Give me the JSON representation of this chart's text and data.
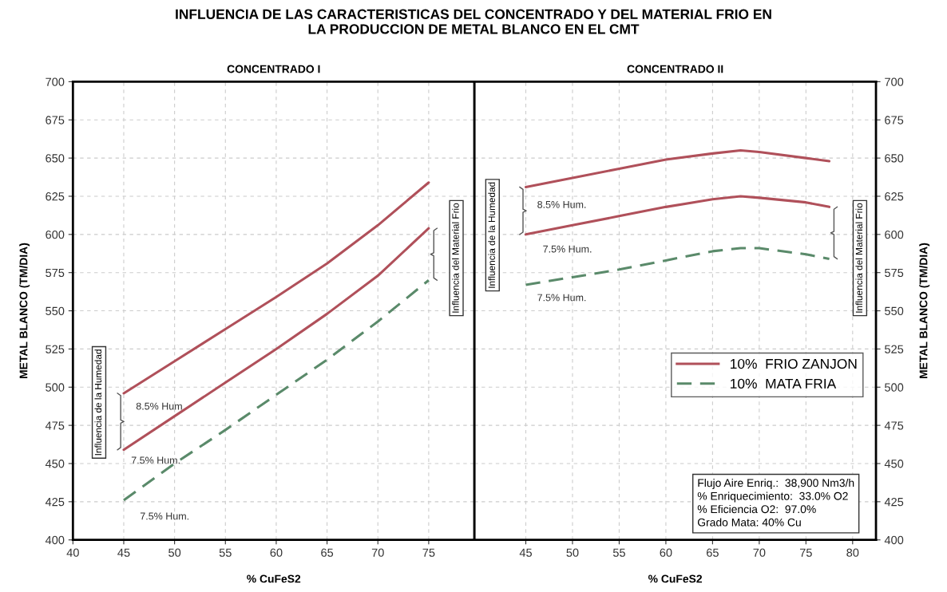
{
  "chart_data": [
    {
      "type": "line",
      "title": "INFLUENCIA DE LAS CARACTERISTICAS DEL CONCENTRADO Y DEL MATERIAL FRIO EN\nLA PRODUCCION DE METAL BLANCO EN EL CMT",
      "subtitle": "CONCENTRADO I",
      "xlabel": "% CuFeS2",
      "ylabel": "METAL BLANCO (TM/DIA)",
      "xlim": [
        40,
        79.5
      ],
      "xticks": [
        40,
        45,
        50,
        55,
        60,
        65,
        70,
        75
      ],
      "ylim": [
        400,
        700
      ],
      "yticks": [
        400,
        425,
        450,
        475,
        500,
        525,
        550,
        575,
        600,
        625,
        650,
        675,
        700
      ],
      "grid": true,
      "marker": "none",
      "series": [
        {
          "x": [
            45,
            50,
            55,
            60,
            65,
            70,
            75
          ],
          "values": [
            496,
            517,
            538,
            559,
            581,
            606,
            634
          ],
          "color": "#b0505a",
          "line_style": "solid"
        },
        {
          "x": [
            45,
            50,
            55,
            60,
            65,
            70,
            75
          ],
          "values": [
            459,
            481,
            503,
            525,
            548,
            573,
            604
          ],
          "color": "#b0505a",
          "line_style": "solid"
        },
        {
          "x": [
            45,
            50,
            55,
            60,
            65,
            70,
            75
          ],
          "values": [
            426,
            450,
            472,
            495,
            518,
            543,
            570
          ],
          "color": "#5a8a6a",
          "line_style": "dashed"
        }
      ],
      "annotations": [
        "8.5% Hum",
        "7.5% Hum.",
        "7.5% Hum.",
        "Influencia de la Humedad",
        "Influencia del Material Frio"
      ]
    },
    {
      "type": "line",
      "subtitle": "CONCENTRADO II",
      "xlabel": "% CuFeS2",
      "ylabel": "METAL BLANCO (TM/DIA)",
      "xlim": [
        39.5,
        82.5
      ],
      "xticks": [
        45,
        50,
        55,
        60,
        65,
        70,
        75,
        80
      ],
      "ylim": [
        400,
        700
      ],
      "yticks": [
        400,
        425,
        450,
        475,
        500,
        525,
        550,
        575,
        600,
        625,
        650,
        675,
        700
      ],
      "grid": true,
      "marker": "none",
      "legend": "right",
      "series": [
        {
          "name": "10%  FRIO ZANJON",
          "x": [
            45,
            50,
            55,
            60,
            65,
            68,
            70,
            75,
            77.5
          ],
          "values": [
            631,
            637,
            643,
            649,
            653,
            655,
            654,
            650,
            648
          ],
          "color": "#b0505a",
          "line_style": "solid"
        },
        {
          "x": [
            45,
            50,
            55,
            60,
            65,
            68,
            70,
            75,
            77.5
          ],
          "values": [
            600,
            606,
            612,
            618,
            623,
            625,
            624,
            621,
            618
          ],
          "color": "#b0505a",
          "line_style": "solid"
        },
        {
          "name": "10%  MATA FRIA",
          "x": [
            45,
            50,
            55,
            60,
            65,
            68,
            70,
            75,
            77.5
          ],
          "values": [
            567,
            572,
            577,
            583,
            589,
            591,
            591,
            587,
            584
          ],
          "color": "#5a8a6a",
          "line_style": "dashed"
        }
      ],
      "annotations": [
        "8.5% Hum.",
        "7.5% Hum.",
        "7.5% Hum.",
        "Influencia de la Humedad",
        "Influencia del Material Frio",
        "Flujo Aire Enriq.:  38,900 Nm3/h\n% Enriquecimiento:  33.0% O2\n% Eficiencia O2:  97.0%\nGrado Mata: 40% Cu"
      ]
    }
  ]
}
